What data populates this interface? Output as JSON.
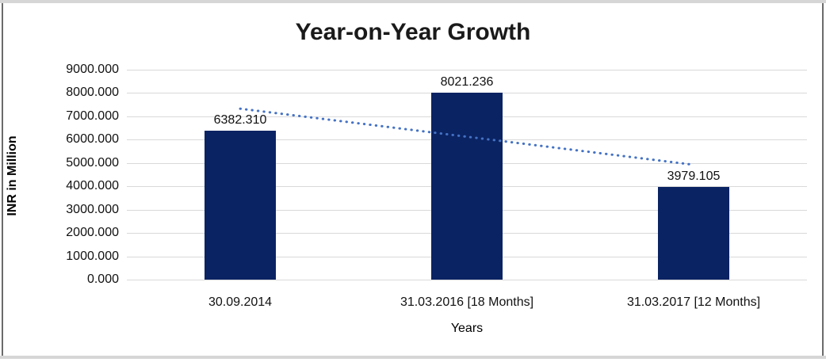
{
  "chart_data": {
    "type": "bar",
    "title": "Year-on-Year Growth",
    "xlabel": "Years",
    "ylabel": "INR in Million",
    "categories": [
      "30.09.2014",
      "31.03.2016 [18 Months]",
      "31.03.2017 [12 Months]"
    ],
    "series": [
      {
        "name": "INR in Million",
        "values": [
          6382.31,
          8021.236,
          3979.105
        ],
        "value_labels": [
          "6382.310",
          "8021.236",
          "3979.105"
        ]
      }
    ],
    "ylim": [
      0,
      9000
    ],
    "y_ticks": [
      0,
      1000,
      2000,
      3000,
      4000,
      5000,
      6000,
      7000,
      8000,
      9000
    ],
    "y_tick_labels": [
      "0.000",
      "1000.000",
      "2000.000",
      "3000.000",
      "4000.000",
      "5000.000",
      "6000.000",
      "7000.000",
      "8000.000",
      "9000.000"
    ],
    "grid": true,
    "legend": "none",
    "trendline": {
      "type": "linear",
      "style": "dotted"
    },
    "colors": {
      "bar": "#0a2363",
      "trendline": "#4472c4",
      "gridline": "#d9d9d9",
      "title_text": "#1a1a1a",
      "axis_text": "#111111"
    }
  }
}
